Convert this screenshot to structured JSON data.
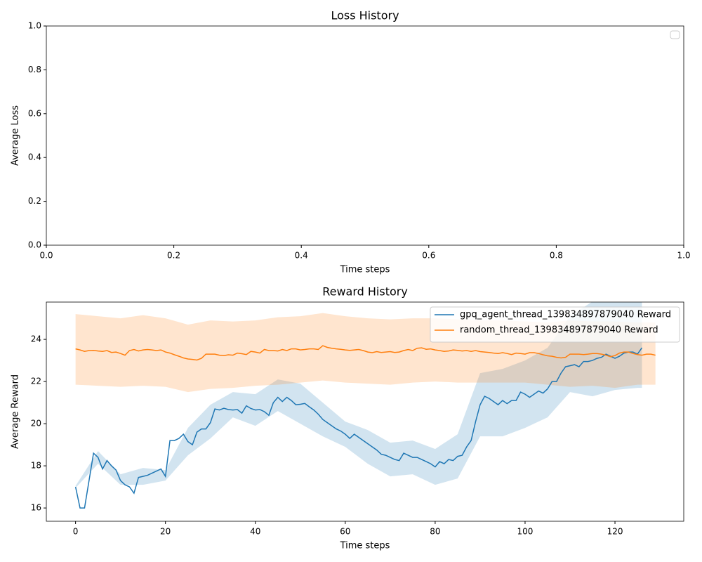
{
  "chart_data": [
    {
      "type": "line",
      "title": "Loss History",
      "xlabel": "Time steps",
      "ylabel": "Average Loss",
      "xlim": [
        0,
        1
      ],
      "ylim": [
        0,
        1
      ],
      "xticks": [
        {
          "value": 0,
          "label": "0.0"
        },
        {
          "value": 0.2,
          "label": "0.2"
        },
        {
          "value": 0.4,
          "label": "0.4"
        },
        {
          "value": 0.6,
          "label": "0.6"
        },
        {
          "value": 0.8,
          "label": "0.8"
        },
        {
          "value": 1,
          "label": "1.0"
        }
      ],
      "yticks": [
        {
          "value": 0,
          "label": "0.0"
        },
        {
          "value": 0.2,
          "label": "0.2"
        },
        {
          "value": 0.4,
          "label": "0.4"
        },
        {
          "value": 0.6,
          "label": "0.6"
        },
        {
          "value": 0.8,
          "label": "0.8"
        },
        {
          "value": 1,
          "label": "1.0"
        }
      ],
      "x": [],
      "series": [],
      "legend": "upper right"
    },
    {
      "type": "line",
      "title": "Reward History",
      "xlabel": "Time steps",
      "ylabel": "Average Reward",
      "xlim": [
        -6.5,
        135.3
      ],
      "ylim": [
        15.37,
        25.77
      ],
      "xticks": [
        0,
        20,
        40,
        60,
        80,
        100,
        120
      ],
      "yticks": [
        16,
        18,
        20,
        22,
        24
      ],
      "legend": "upper right",
      "x": [
        0,
        1,
        2,
        3,
        4,
        5,
        6,
        7,
        8,
        9,
        10,
        11,
        12,
        13,
        14,
        15,
        16,
        17,
        18,
        19,
        20,
        21,
        22,
        23,
        24,
        25,
        26,
        27,
        28,
        29,
        30,
        31,
        32,
        33,
        34,
        35,
        36,
        37,
        38,
        39,
        40,
        41,
        42,
        43,
        44,
        45,
        46,
        47,
        48,
        49,
        50,
        51,
        52,
        53,
        54,
        55,
        56,
        57,
        58,
        59,
        60,
        61,
        62,
        63,
        64,
        65,
        66,
        67,
        68,
        69,
        70,
        71,
        72,
        73,
        74,
        75,
        76,
        77,
        78,
        79,
        80,
        81,
        82,
        83,
        84,
        85,
        86,
        87,
        88,
        89,
        90,
        91,
        92,
        93,
        94,
        95,
        96,
        97,
        98,
        99,
        100,
        101,
        102,
        103,
        104,
        105,
        106,
        107,
        108,
        109,
        110,
        111,
        112,
        113,
        114,
        115,
        116,
        117,
        118,
        119,
        120,
        121,
        122,
        123,
        124,
        125,
        126,
        127,
        128,
        129
      ],
      "series": [
        {
          "name": "gpq_agent_thread_139834897879040 Reward",
          "color": "#1f77b4",
          "values": [
            17.0,
            16.0,
            16.0,
            17.3,
            18.6,
            18.4,
            17.85,
            18.25,
            18.0,
            17.8,
            17.3,
            17.1,
            17.0,
            16.7,
            17.45,
            17.5,
            17.55,
            17.65,
            17.75,
            17.85,
            17.5,
            19.2,
            19.2,
            19.3,
            19.5,
            19.15,
            19.0,
            19.6,
            19.75,
            19.75,
            20.05,
            20.7,
            20.65,
            20.73,
            20.67,
            20.65,
            20.67,
            20.5,
            20.85,
            20.72,
            20.65,
            20.67,
            20.57,
            20.4,
            21.0,
            21.25,
            21.05,
            21.25,
            21.1,
            20.9,
            20.92,
            20.96,
            20.8,
            20.65,
            20.45,
            20.2,
            20.05,
            19.9,
            19.75,
            19.65,
            19.5,
            19.3,
            19.5,
            19.35,
            19.2,
            19.05,
            18.9,
            18.75,
            18.55,
            18.5,
            18.4,
            18.3,
            18.25,
            18.6,
            18.5,
            18.4,
            18.4,
            18.3,
            18.2,
            18.1,
            17.95,
            18.2,
            18.1,
            18.3,
            18.25,
            18.45,
            18.5,
            18.9,
            19.2,
            20.1,
            20.9,
            21.3,
            21.2,
            21.05,
            20.9,
            21.1,
            20.95,
            21.1,
            21.1,
            21.5,
            21.4,
            21.25,
            21.4,
            21.55,
            21.45,
            21.65,
            22.0,
            22.0,
            22.4,
            22.7,
            22.75,
            22.8,
            22.7,
            22.95,
            22.95,
            23.0,
            23.1,
            23.15,
            23.3,
            23.2,
            23.1,
            23.2,
            23.35,
            23.4,
            23.4,
            23.3,
            23.6,
            null,
            null,
            null
          ],
          "band": {
            "x": [
              0,
              5,
              10,
              15,
              20,
              25,
              30,
              35,
              40,
              45,
              50,
              55,
              60,
              65,
              70,
              75,
              80,
              85,
              90,
              95,
              100,
              105,
              110,
              115,
              120,
              125,
              126
            ],
            "lower": [
              16.95,
              18.1,
              17.1,
              17.1,
              17.3,
              18.5,
              19.3,
              20.3,
              19.9,
              20.6,
              20.0,
              19.4,
              18.9,
              18.1,
              17.5,
              17.6,
              17.1,
              17.4,
              19.4,
              19.4,
              19.8,
              20.3,
              21.5,
              21.3,
              21.6,
              21.7,
              21.7
            ],
            "upper": [
              17.05,
              18.7,
              17.6,
              17.9,
              17.8,
              19.8,
              20.9,
              21.5,
              21.4,
              22.1,
              21.9,
              21.0,
              20.1,
              19.7,
              19.1,
              19.2,
              18.8,
              19.5,
              22.4,
              22.6,
              23.0,
              23.6,
              25.1,
              25.8,
              25.8,
              25.8,
              25.8
            ]
          }
        },
        {
          "name": "random_thread_139834897879040 Reward",
          "color": "#ff7f0e",
          "values": [
            23.55,
            23.5,
            23.43,
            23.47,
            23.48,
            23.45,
            23.43,
            23.47,
            23.38,
            23.4,
            23.33,
            23.25,
            23.47,
            23.52,
            23.45,
            23.5,
            23.52,
            23.5,
            23.47,
            23.5,
            23.4,
            23.35,
            23.27,
            23.2,
            23.12,
            23.07,
            23.05,
            23.02,
            23.1,
            23.3,
            23.3,
            23.3,
            23.25,
            23.23,
            23.27,
            23.25,
            23.35,
            23.32,
            23.28,
            23.43,
            23.4,
            23.35,
            23.52,
            23.47,
            23.47,
            23.45,
            23.52,
            23.47,
            23.55,
            23.55,
            23.5,
            23.52,
            23.55,
            23.55,
            23.52,
            23.7,
            23.62,
            23.58,
            23.55,
            23.53,
            23.5,
            23.48,
            23.5,
            23.52,
            23.47,
            23.4,
            23.37,
            23.42,
            23.38,
            23.4,
            23.42,
            23.38,
            23.4,
            23.47,
            23.52,
            23.47,
            23.58,
            23.6,
            23.53,
            23.55,
            23.5,
            23.47,
            23.43,
            23.45,
            23.5,
            23.48,
            23.45,
            23.47,
            23.43,
            23.47,
            23.42,
            23.4,
            23.38,
            23.35,
            23.33,
            23.37,
            23.33,
            23.28,
            23.35,
            23.33,
            23.3,
            23.37,
            23.37,
            23.33,
            23.27,
            23.22,
            23.2,
            23.15,
            23.12,
            23.15,
            23.3,
            23.3,
            23.3,
            23.28,
            23.3,
            23.33,
            23.33,
            23.3,
            23.25,
            23.18,
            23.23,
            23.35,
            23.4,
            23.4,
            23.33,
            23.28,
            23.25,
            23.3,
            23.3,
            23.25
          ],
          "band": {
            "x": [
              0,
              5,
              10,
              15,
              20,
              25,
              30,
              35,
              40,
              45,
              50,
              55,
              60,
              65,
              70,
              75,
              80,
              85,
              90,
              95,
              100,
              105,
              110,
              115,
              120,
              125,
              129
            ],
            "lower": [
              21.85,
              21.8,
              21.75,
              21.8,
              21.75,
              21.5,
              21.65,
              21.7,
              21.8,
              21.85,
              21.95,
              22.05,
              21.95,
              21.9,
              21.85,
              21.95,
              22.0,
              21.95,
              21.95,
              21.95,
              21.95,
              21.85,
              21.75,
              21.8,
              21.7,
              21.85,
              21.85
            ],
            "upper": [
              25.2,
              25.1,
              25.0,
              25.15,
              25.0,
              24.7,
              24.9,
              24.85,
              24.9,
              25.05,
              25.1,
              25.25,
              25.1,
              25.0,
              24.95,
              25.0,
              25.0,
              24.95,
              24.9,
              24.9,
              24.85,
              24.8,
              24.9,
              24.85,
              24.85,
              24.8,
              24.8
            ]
          }
        }
      ]
    }
  ]
}
